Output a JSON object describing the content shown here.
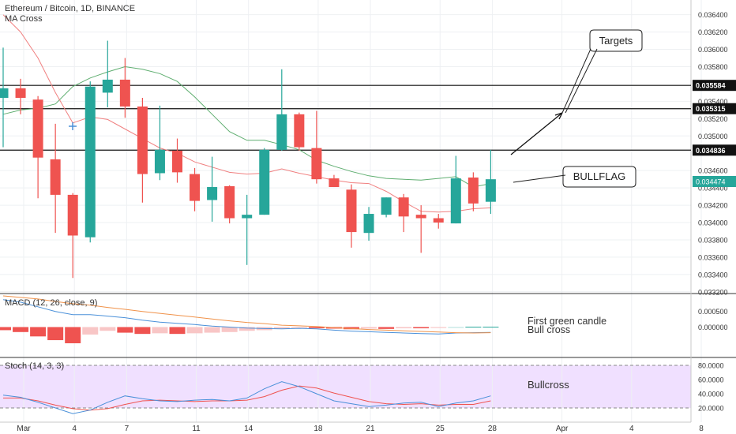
{
  "header": {
    "title": "Ethereum / Bitcoin, 1D, BINANCE",
    "indicator": "MA Cross"
  },
  "macd": {
    "label": "MACD (12, 26, close, 9)"
  },
  "stoch": {
    "label": "Stoch (14, 3, 3)"
  },
  "annotations": {
    "targets": "Targets",
    "bullflag": "BULLFLAG",
    "macd_note_1": "First green candle",
    "macd_note_2": "Bull cross",
    "bullcross": "Bullcross"
  },
  "colors": {
    "up": "#26a69a",
    "down": "#ef5350",
    "ma_fast": "#f08080",
    "ma_slow": "#5fae70",
    "macd_line": "#4a90d9",
    "signal_line": "#f0924a",
    "stoch_bg": "#e6ccff",
    "stoch_k": "#4a90d9",
    "stoch_d": "#ef5350"
  },
  "chart_data": [
    {
      "type": "candlestick",
      "title": "Ethereum / Bitcoin, 1D, BINANCE",
      "x_ticks": [
        "Mar",
        "4",
        "7",
        "11",
        "14",
        "18",
        "21",
        "25",
        "28",
        "Apr",
        "4",
        "8"
      ],
      "y_ticks": [
        "0.036400",
        "0.036200",
        "0.036000",
        "0.035800",
        "0.035400",
        "0.035200",
        "0.035000",
        "0.034600",
        "0.034400",
        "0.034200",
        "0.034000",
        "0.033800",
        "0.033600",
        "0.033400",
        "0.033200"
      ],
      "ylim": [
        0.03318,
        0.03657
      ],
      "price_levels": [
        "0.035584",
        "0.035315",
        "0.034836"
      ],
      "last_price": "0.034474",
      "candles": [
        {
          "o": 0.03544,
          "c": 0.03555,
          "h": 0.03602,
          "l": 0.03487
        },
        {
          "o": 0.03555,
          "c": 0.03544,
          "h": 0.03566,
          "l": 0.03525
        },
        {
          "o": 0.03542,
          "c": 0.03475,
          "h": 0.03546,
          "l": 0.03428
        },
        {
          "o": 0.03473,
          "c": 0.03432,
          "h": 0.03514,
          "l": 0.03388
        },
        {
          "o": 0.03432,
          "c": 0.03385,
          "h": 0.03434,
          "l": 0.03336
        },
        {
          "o": 0.03383,
          "c": 0.03557,
          "h": 0.03563,
          "l": 0.03377
        },
        {
          "o": 0.0355,
          "c": 0.03565,
          "h": 0.0361,
          "l": 0.03533
        },
        {
          "o": 0.03565,
          "c": 0.03534,
          "h": 0.0359,
          "l": 0.03521
        },
        {
          "o": 0.03534,
          "c": 0.03456,
          "h": 0.03544,
          "l": 0.03423
        },
        {
          "o": 0.03457,
          "c": 0.03484,
          "h": 0.03535,
          "l": 0.03449
        },
        {
          "o": 0.03483,
          "c": 0.03458,
          "h": 0.03497,
          "l": 0.03446
        },
        {
          "o": 0.03456,
          "c": 0.03425,
          "h": 0.03463,
          "l": 0.03413
        },
        {
          "o": 0.03426,
          "c": 0.03441,
          "h": 0.03476,
          "l": 0.03401
        },
        {
          "o": 0.03442,
          "c": 0.03405,
          "h": 0.03443,
          "l": 0.03399
        },
        {
          "o": 0.03405,
          "c": 0.03409,
          "h": 0.03432,
          "l": 0.03351
        },
        {
          "o": 0.03409,
          "c": 0.03484,
          "h": 0.03486,
          "l": 0.03409
        },
        {
          "o": 0.03484,
          "c": 0.03525,
          "h": 0.03577,
          "l": 0.03483
        },
        {
          "o": 0.03525,
          "c": 0.03487,
          "h": 0.03527,
          "l": 0.03483
        },
        {
          "o": 0.03486,
          "c": 0.0345,
          "h": 0.03529,
          "l": 0.03445
        },
        {
          "o": 0.03451,
          "c": 0.03441,
          "h": 0.03455,
          "l": 0.03441
        },
        {
          "o": 0.03438,
          "c": 0.03389,
          "h": 0.03444,
          "l": 0.03371
        },
        {
          "o": 0.03388,
          "c": 0.0341,
          "h": 0.03418,
          "l": 0.03379
        },
        {
          "o": 0.03409,
          "c": 0.03429,
          "h": 0.03429,
          "l": 0.03406
        },
        {
          "o": 0.03429,
          "c": 0.03407,
          "h": 0.03433,
          "l": 0.03389
        },
        {
          "o": 0.03409,
          "c": 0.03405,
          "h": 0.0342,
          "l": 0.03365
        },
        {
          "o": 0.03405,
          "c": 0.034,
          "h": 0.0341,
          "l": 0.03393
        },
        {
          "o": 0.03399,
          "c": 0.03451,
          "h": 0.03477,
          "l": 0.03399
        },
        {
          "o": 0.03452,
          "c": 0.03422,
          "h": 0.03458,
          "l": 0.03413
        },
        {
          "o": 0.03424,
          "c": 0.0345,
          "h": 0.03484,
          "l": 0.0341
        }
      ],
      "ma_fast": [
        0.0364,
        0.0362,
        0.0359,
        0.0355,
        0.03515,
        0.03522,
        0.03519,
        0.03508,
        0.03497,
        0.03486,
        0.0348,
        0.0347,
        0.03464,
        0.03458,
        0.03456,
        0.03457,
        0.03462,
        0.03457,
        0.03453,
        0.03449,
        0.03446,
        0.03445,
        0.03436,
        0.03424,
        0.03413,
        0.03412,
        0.03413,
        0.03416,
        0.03417
      ],
      "ma_slow": [
        0.03525,
        0.0353,
        0.03532,
        0.03537,
        0.03557,
        0.03567,
        0.03574,
        0.0358,
        0.03577,
        0.03572,
        0.03563,
        0.03545,
        0.03525,
        0.03505,
        0.03495,
        0.03495,
        0.0349,
        0.03484,
        0.03472,
        0.03465,
        0.03459,
        0.03454,
        0.03451,
        0.0345,
        0.03449,
        0.03451,
        0.03453,
        0.03441,
        0.03445
      ]
    },
    {
      "type": "bar",
      "title": "MACD (12, 26, close, 9)",
      "y_ticks": [
        "0.000500",
        "0.000000"
      ],
      "ylim": [
        -0.00095,
        0.00105
      ],
      "histogram": [
        -0.0001,
        -0.00016,
        -0.0003,
        -0.00042,
        -0.00052,
        -0.00024,
        -0.00012,
        -0.00018,
        -0.00022,
        -0.0002,
        -0.00022,
        -0.0002,
        -0.00018,
        -0.00016,
        -0.00012,
        -0.0001,
        -5e-05,
        -3e-05,
        -4e-05,
        -5e-05,
        -7e-05,
        -5e-05,
        -6e-05,
        -4e-05,
        -4e-05,
        -3e-05,
        0.0,
        1e-05,
        1e-05
      ],
      "macd": [
        0.00088,
        0.0008,
        0.00065,
        0.0005,
        0.0004,
        0.0004,
        0.00035,
        0.0003,
        0.00022,
        0.00016,
        0.00012,
        8e-05,
        3e-05,
        0.0,
        -3e-05,
        -5e-05,
        -6e-05,
        -4e-05,
        -6e-05,
        -0.0001,
        -0.00013,
        -0.00015,
        -0.00017,
        -0.00019,
        -0.00021,
        -0.00022,
        -0.00019,
        -0.00018,
        -0.00017
      ],
      "signal": [
        0.001,
        0.00095,
        0.0009,
        0.00082,
        0.00075,
        0.0007,
        0.00063,
        0.00057,
        0.0005,
        0.00044,
        0.00038,
        0.00032,
        0.00026,
        0.0002,
        0.00015,
        0.00011,
        6e-05,
        4e-05,
        2e-05,
        -2e-05,
        -5e-05,
        -8e-05,
        -0.0001,
        -0.00012,
        -0.00014,
        -0.00016,
        -0.00018,
        -0.00019,
        -0.00018
      ]
    },
    {
      "type": "line",
      "title": "Stoch (14, 3, 3)",
      "y_ticks": [
        "80.0000",
        "60.0000",
        "40.0000",
        "20.0000"
      ],
      "ylim": [
        0,
        90
      ],
      "bands": [
        20,
        80
      ],
      "k": [
        38,
        35,
        28,
        20,
        12,
        17,
        28,
        37,
        33,
        30,
        29,
        31,
        32,
        30,
        34,
        47,
        57,
        50,
        40,
        30,
        26,
        22,
        24,
        27,
        28,
        22,
        27,
        30,
        37
      ],
      "d": [
        34,
        34,
        30,
        24,
        19,
        17,
        19,
        25,
        30,
        31,
        30,
        29,
        30,
        30,
        31,
        36,
        45,
        51,
        48,
        41,
        35,
        29,
        26,
        25,
        26,
        24,
        25,
        25,
        30
      ]
    }
  ]
}
